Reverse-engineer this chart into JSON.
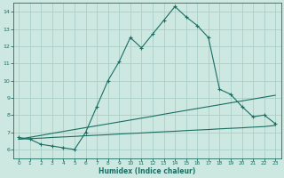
{
  "xlabel": "Humidex (Indice chaleur)",
  "ylabel": "",
  "bg_color": "#cce8e0",
  "grid_color": "#aacfc8",
  "line_color": "#1a6e64",
  "xlim": [
    -0.5,
    23.5
  ],
  "ylim": [
    5.5,
    14.5
  ],
  "xticks": [
    0,
    1,
    2,
    3,
    4,
    5,
    6,
    7,
    8,
    9,
    10,
    11,
    12,
    13,
    14,
    15,
    16,
    17,
    18,
    19,
    20,
    21,
    22,
    23
  ],
  "yticks": [
    6,
    7,
    8,
    9,
    10,
    11,
    12,
    13,
    14
  ],
  "curve1_x": [
    0,
    1,
    2,
    3,
    4,
    5,
    6,
    7,
    8,
    9,
    10,
    11,
    12,
    13,
    14,
    15,
    16,
    17,
    18,
    19,
    20,
    21,
    22,
    23
  ],
  "curve1_y": [
    6.7,
    6.6,
    6.3,
    6.2,
    6.1,
    6.0,
    7.0,
    8.5,
    10.0,
    11.1,
    12.5,
    11.9,
    12.7,
    13.5,
    14.3,
    13.7,
    13.2,
    12.5,
    9.5,
    9.2,
    8.5,
    7.9,
    8.0,
    7.5
  ],
  "curve2_x": [
    0,
    1,
    2,
    3,
    4,
    5,
    6,
    7,
    8,
    9,
    10,
    11,
    12,
    13,
    14,
    15,
    16,
    17,
    18,
    19,
    20,
    21,
    22,
    23
  ],
  "curve2_y": [
    6.6,
    6.63,
    6.66,
    6.7,
    6.73,
    6.76,
    6.8,
    6.83,
    6.86,
    6.9,
    6.93,
    6.96,
    7.0,
    7.03,
    7.06,
    7.1,
    7.13,
    7.16,
    7.2,
    7.23,
    7.26,
    7.3,
    7.33,
    7.4
  ],
  "curve3_x": [
    0,
    1,
    2,
    3,
    4,
    5,
    6,
    7,
    8,
    9,
    10,
    11,
    12,
    13,
    14,
    15,
    16,
    17,
    18,
    19,
    20,
    21,
    22,
    23
  ],
  "curve3_y": [
    6.6,
    6.71,
    6.82,
    6.94,
    7.05,
    7.16,
    7.27,
    7.38,
    7.49,
    7.6,
    7.71,
    7.82,
    7.93,
    8.05,
    8.16,
    8.27,
    8.38,
    8.49,
    8.6,
    8.71,
    8.82,
    8.93,
    9.04,
    9.15
  ]
}
